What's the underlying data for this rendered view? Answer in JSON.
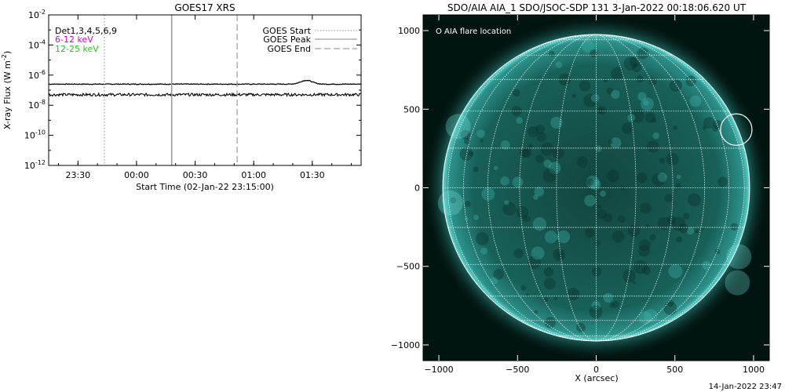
{
  "footer": {
    "timestamp": "14-Jan-2022 23:47"
  },
  "chart_data": [
    {
      "type": "line",
      "title": "GOES17 XRS",
      "xlabel": "Start Time (02-Jan-22 23:15:00)",
      "ylabel": "X-ray Flux (W m",
      "ylabel_sup": "-2",
      "ylabel_end": ")",
      "y_scale": "log",
      "ylim_exp": [
        -12,
        -2
      ],
      "yticks": [
        {
          "base": "10",
          "exp": "-2",
          "value": -2
        },
        {
          "base": "10",
          "exp": "-4",
          "value": -4
        },
        {
          "base": "10",
          "exp": "-6",
          "value": -6
        },
        {
          "base": "10",
          "exp": "-8",
          "value": -8
        },
        {
          "base": "10",
          "exp": "-10",
          "value": -10
        },
        {
          "base": "10",
          "exp": "-12",
          "value": -12
        }
      ],
      "xlim_minutes": [
        0,
        160
      ],
      "xticks": [
        {
          "label": "23:30",
          "minutes": 15
        },
        {
          "label": "00:00",
          "minutes": 45
        },
        {
          "label": "00:30",
          "minutes": 75
        },
        {
          "label": "01:00",
          "minutes": 105
        },
        {
          "label": "01:30",
          "minutes": 135
        }
      ],
      "channel_legend": [
        {
          "label": "Det1,3,4,5,6,9",
          "color": "#000000"
        },
        {
          "label": "6-12 keV",
          "color": "#d400d4"
        },
        {
          "label": "12-25 keV",
          "color": "#22c422"
        }
      ],
      "event_legend": [
        {
          "label": "GOES Start",
          "style": "dotted"
        },
        {
          "label": "GOES Peak",
          "style": "solid"
        },
        {
          "label": "GOES End",
          "style": "dashed"
        }
      ],
      "events": {
        "start_minutes": 28.5,
        "peak_minutes": 63,
        "end_minutes": 96.5
      },
      "series": [
        {
          "name": "Det1,3,4,5,6,9",
          "level_exp": -6.6,
          "bump_minutes": 132,
          "bump_exp": -6.35
        },
        {
          "name": "Det1,3,4,5,6,9 (lower)",
          "level_exp": -7.3
        }
      ]
    },
    {
      "type": "image",
      "title": "SDO/AIA AIA_1 SDO/JSOC-SDP 131  3-Jan-2022 00:18:06.620 UT",
      "xlabel": "X (arcsec)",
      "legend": "O AIA flare location",
      "xlim": [
        -1100,
        1100
      ],
      "ylim": [
        -1100,
        1100
      ],
      "xticks": [
        {
          "label": "−1000",
          "value": -1000
        },
        {
          "label": "−500",
          "value": -500
        },
        {
          "label": "0",
          "value": 0
        },
        {
          "label": "500",
          "value": 500
        },
        {
          "label": "1000",
          "value": 1000
        }
      ],
      "yticks": [
        {
          "label": "1000",
          "value": 1000
        },
        {
          "label": "500",
          "value": 500
        },
        {
          "label": "0",
          "value": 0
        },
        {
          "label": "−500",
          "value": -500
        },
        {
          "label": "−1000",
          "value": -1000
        }
      ],
      "solar_radius_arcsec": 975,
      "flare_location": {
        "x": 890,
        "y": 370,
        "radius": 100
      },
      "colors": {
        "background": "#021410",
        "disk": "#16504a",
        "limb": "#5ed8d0",
        "grid": "#ffffff"
      }
    }
  ]
}
